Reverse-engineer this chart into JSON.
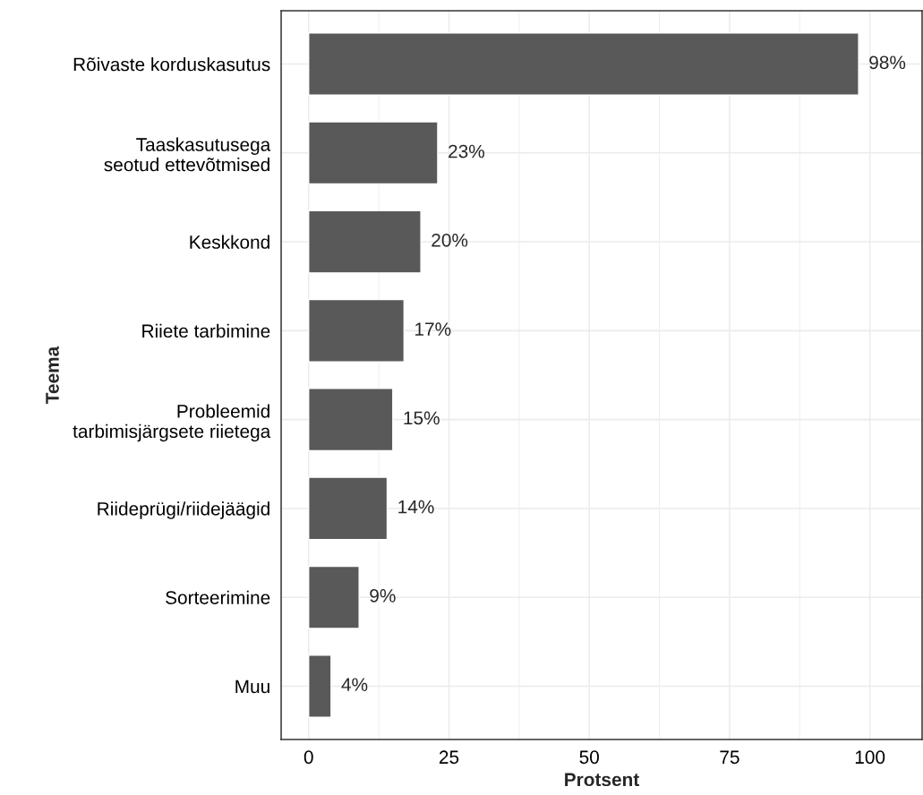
{
  "chart_data": {
    "type": "bar",
    "orientation": "horizontal",
    "xlabel": "Protsent",
    "ylabel": "Teema",
    "categories": [
      "Rõivaste korduskasutus",
      "Taaskasutusega\nseotud ettevõtmised",
      "Keskkond",
      "Riiete tarbimine",
      "Probleemid\ntarbimisjärgsete riietega",
      "Riideprügi/riidejäägid",
      "Sorteerimine",
      "Muu"
    ],
    "values": [
      98,
      23,
      20,
      17,
      15,
      14,
      9,
      4
    ],
    "value_labels": [
      "98%",
      "23%",
      "20%",
      "17%",
      "15%",
      "14%",
      "9%",
      "4%"
    ],
    "color": "#595959",
    "xlim": [
      -4.9,
      109.3
    ],
    "xticks": [
      0,
      25,
      50,
      75,
      100
    ],
    "grid": true
  }
}
